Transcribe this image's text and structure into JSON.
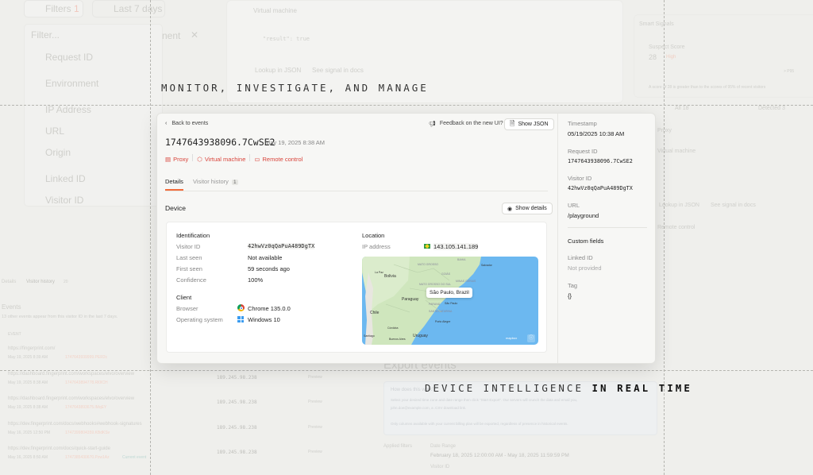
{
  "background": {
    "filters_label": "Filters",
    "filters_count": "1",
    "date_range": "Last 7 days",
    "filter_placeholder": "Filter...",
    "filter_options": [
      "Request ID",
      "Environment",
      "IP Address",
      "URL",
      "Origin",
      "Linked ID",
      "Visitor ID"
    ],
    "environment_chip": "nent",
    "virtual_machine": "Virtual machine",
    "json_lines": [
      "{",
      "  \"result\": true",
      "}"
    ],
    "lookup_json": "Lookup in JSON",
    "see_signal_docs": "See signal in docs",
    "remote_control": "Remote control",
    "smart_signals": "Smart Signals",
    "suspect_score_label": "Suspect Score",
    "suspect_score": "28",
    "suspect_level": "High",
    "percentile": "> P95",
    "score_note": "A score of 28 is greater than to the scores of 95% of recent visitors",
    "all_tab": "All 18",
    "detected_tab": "Detected 3",
    "proxy": "Proxy",
    "tabs": [
      "Details",
      "Visitor history"
    ],
    "history_count": "20",
    "events_title": "Events",
    "events_note": "13 other events appear from this visitor ID in the last 7 days.",
    "event_col": "EVENT",
    "events": [
      {
        "url": "https://fingerprint.com/",
        "meta": "May 19, 2025 8:39 AM",
        "rid": "1747643939999.PER2c",
        "ip": ""
      },
      {
        "url": "https://dashboard.fingerprint.com/workspaces/elvo/overview",
        "meta": "May 19, 2025 8:38 AM",
        "rid": "1747643894778.Rl0ICH",
        "ip": "189.245.98.238"
      },
      {
        "url": "https://dashboard.fingerprint.com/workspaces/elvo/overview",
        "meta": "May 19, 2025 8:38 AM",
        "rid": "1747643893675.lMqEY",
        "ip": "189.245.98.238"
      },
      {
        "url": "https://dev.fingerprint.com/docs/webhooks#webhook-signatures",
        "meta": "May 16, 2025 12:50 PM",
        "rid": "1747399804359.KBdKSv",
        "ip": "189.245.98.238"
      },
      {
        "url": "https://dev.fingerprint.com/docs/quick-start-guide",
        "meta": "May 16, 2025 8:50 AM",
        "rid": "1747385430670.Pzw1Az",
        "ip": "189.245.98.238",
        "badge": "Current event"
      }
    ],
    "preview_label": "Preview",
    "export_title": "Export events",
    "how_title": "How does this work?",
    "how_text": "Select your desired time zone and date range then click \"Start Export\". Our servers will crunch the data and email you,",
    "how_text2": "john.doe@example.com, a .CSV download link.",
    "how_text3": "Only columns available with your current billing plan will be exported, regardless of presence in historical events.",
    "applied_filters": "Applied filters",
    "date_range_label": "Date Range",
    "date_range_value": "February 18, 2025 12:00:00 AM - May 18, 2025 11:59:59 PM",
    "visitor_id_label": "Visitor ID"
  },
  "headlines": {
    "top": "MONITOR, INVESTIGATE, AND MANAGE",
    "bottom_a": "DEVICE INTELLIGENCE",
    "bottom_b": "IN REAL TIME"
  },
  "card": {
    "back": "Back to events",
    "feedback": "Feedback on the new UI?",
    "show_json": "Show JSON",
    "request_id": "1747643938096.7CwSE2",
    "date": "May 19, 2025 8:38 AM",
    "tags": [
      "Proxy",
      "Virtual machine",
      "Remote control"
    ],
    "tabs": [
      {
        "label": "Details",
        "active": true
      },
      {
        "label": "Visitor history",
        "count": "1"
      }
    ],
    "section_title": "Device",
    "show_details": "Show details",
    "identification": {
      "title": "Identification",
      "rows": [
        {
          "label": "Visitor ID",
          "value": "42hwVz0qQaPuA489DgTX"
        },
        {
          "label": "Last seen",
          "value": "Not available"
        },
        {
          "label": "First seen",
          "value": "59 seconds ago"
        },
        {
          "label": "Confidence",
          "value": "100%"
        }
      ]
    },
    "client": {
      "title": "Client",
      "rows": [
        {
          "label": "Browser",
          "value": "Chrome 135.0.0",
          "icon": "chrome-icon"
        },
        {
          "label": "Operating system",
          "value": "Windows 10",
          "icon": "windows-icon"
        }
      ]
    },
    "location": {
      "title": "Location",
      "ip_label": "IP address",
      "ip": "143.105.141.189",
      "flag": "brazil-flag-icon",
      "map_popup": "São Paulo, Brazil",
      "map_labels": [
        "Bolivia",
        "Paraguay",
        "Chile",
        "Uruguay",
        "MATO GROSSO",
        "GOIÁS",
        "MINAS GERAIS",
        "MATO GROSSO DO SUL",
        "PARANÁ",
        "SANTA CATARINA",
        "São Paulo",
        "Porto Alegre",
        "Buenos Aires",
        "Salvador",
        "BAHIA",
        "La Paz",
        "Córdoba",
        "Santiago"
      ],
      "map_attribution": "mapbox"
    },
    "sidebar": {
      "fields": [
        {
          "label": "Timestamp",
          "value": "05/19/2025 10:38 AM"
        },
        {
          "label": "Request ID",
          "value": "1747643938096.7CwSE2",
          "mono": true
        },
        {
          "label": "Visitor ID",
          "value": "42hwVz0qQaPuA489DgTX",
          "mono": true
        },
        {
          "label": "URL",
          "value": "/playground"
        }
      ],
      "custom_title": "Custom fields",
      "custom": [
        {
          "label": "Linked ID",
          "value": "Not provided",
          "muted": true
        },
        {
          "label": "Tag",
          "value": "{}"
        }
      ]
    }
  },
  "colors": {
    "accent": "#f26b3a",
    "danger": "#d9443b",
    "map_water": "#6cb8f0",
    "map_land": "#c9e4b5"
  }
}
